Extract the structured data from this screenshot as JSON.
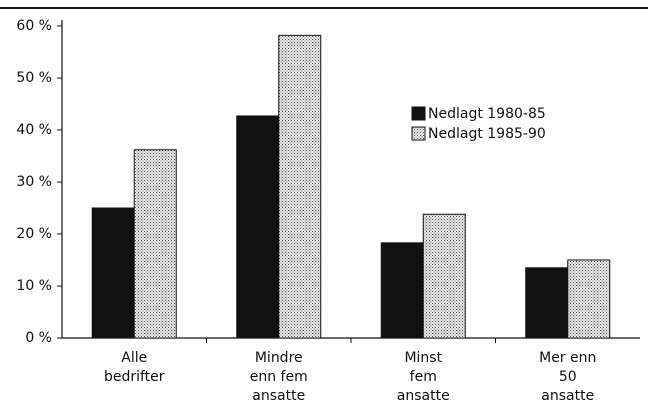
{
  "chart_data": {
    "type": "bar",
    "categories": [
      [
        "Alle",
        "bedrifter"
      ],
      [
        "Mindre",
        "enn fem",
        "ansatte"
      ],
      [
        "Minst",
        "fem",
        "ansatte"
      ],
      [
        "Mer enn",
        "50",
        "ansatte"
      ]
    ],
    "series": [
      {
        "name": "Nedlagt 1980-85",
        "color": "#111111",
        "values": [
          25,
          42.7,
          18.3,
          13.5
        ]
      },
      {
        "name": "Nedlagt 1985-90",
        "color": "#cfcfcf",
        "values": [
          36.2,
          58.2,
          23.8,
          15
        ]
      }
    ],
    "ylim": [
      0,
      60
    ],
    "yticks": [
      {
        "value": 0,
        "label": "0 %"
      },
      {
        "value": 10,
        "label": "10 %"
      },
      {
        "value": 20,
        "label": "20 %"
      },
      {
        "value": 30,
        "label": "30 %"
      },
      {
        "value": 40,
        "label": "40 %"
      },
      {
        "value": 50,
        "label": "50 %"
      },
      {
        "value": 60,
        "label": "60 %"
      }
    ],
    "grid": false
  }
}
